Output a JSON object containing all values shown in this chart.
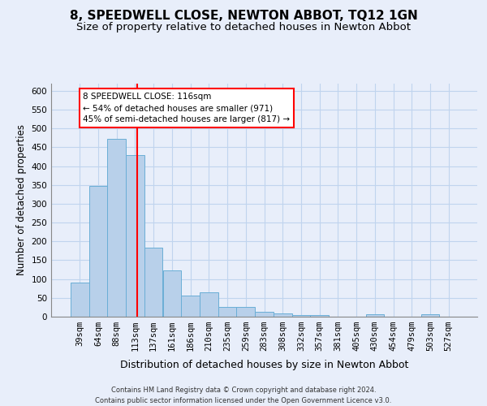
{
  "title": "8, SPEEDWELL CLOSE, NEWTON ABBOT, TQ12 1GN",
  "subtitle": "Size of property relative to detached houses in Newton Abbot",
  "xlabel": "Distribution of detached houses by size in Newton Abbot",
  "ylabel": "Number of detached properties",
  "categories": [
    "39sqm",
    "64sqm",
    "88sqm",
    "113sqm",
    "137sqm",
    "161sqm",
    "186sqm",
    "210sqm",
    "235sqm",
    "259sqm",
    "283sqm",
    "308sqm",
    "332sqm",
    "357sqm",
    "381sqm",
    "405sqm",
    "430sqm",
    "454sqm",
    "479sqm",
    "503sqm",
    "527sqm"
  ],
  "values": [
    90,
    347,
    473,
    430,
    183,
    122,
    56,
    65,
    25,
    25,
    12,
    8,
    5,
    5,
    1,
    1,
    6,
    1,
    1,
    6,
    1
  ],
  "bar_color": "#b8d0ea",
  "bar_edge_color": "#6aaed6",
  "vline_color": "red",
  "vline_pos": 3.12,
  "annotation_line1": "8 SPEEDWELL CLOSE: 116sqm",
  "annotation_line2": "← 54% of detached houses are smaller (971)",
  "annotation_line3": "45% of semi-detached houses are larger (817) →",
  "ylim": [
    0,
    620
  ],
  "yticks": [
    0,
    50,
    100,
    150,
    200,
    250,
    300,
    350,
    400,
    450,
    500,
    550,
    600
  ],
  "footer_line1": "Contains HM Land Registry data © Crown copyright and database right 2024.",
  "footer_line2": "Contains public sector information licensed under the Open Government Licence v3.0.",
  "bg_color": "#e8eefa",
  "title_fontsize": 11,
  "subtitle_fontsize": 9.5,
  "xlabel_fontsize": 9,
  "ylabel_fontsize": 8.5,
  "tick_fontsize": 7.5,
  "annot_fontsize": 7.5,
  "footer_fontsize": 6.0
}
